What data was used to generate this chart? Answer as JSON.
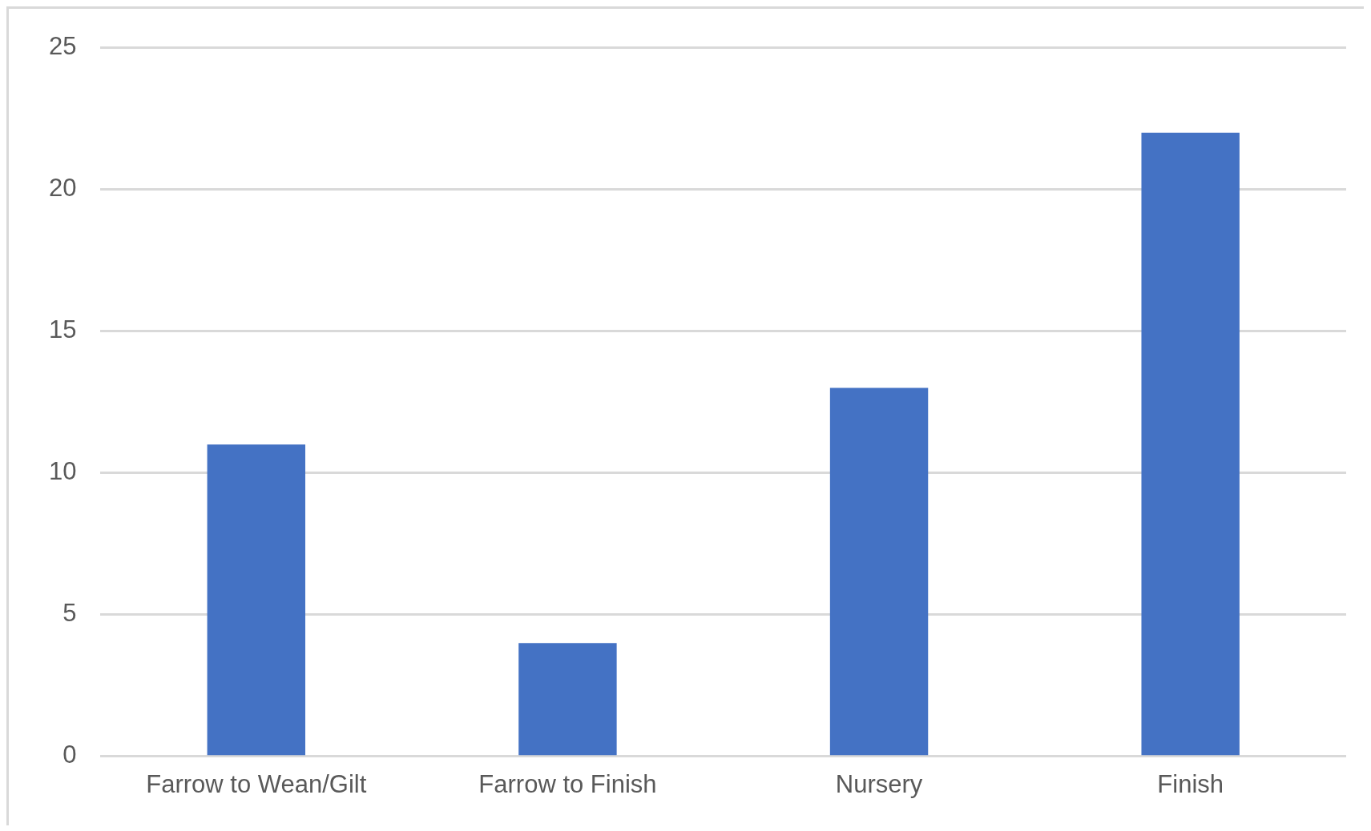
{
  "chart_data": {
    "type": "bar",
    "categories": [
      "Farrow to Wean/Gilt",
      "Farrow to Finish",
      "Nursery",
      "Finish"
    ],
    "values": [
      11,
      4,
      13,
      22
    ],
    "color": "#4472c4",
    "ylim": [
      0,
      25
    ],
    "yticks": [
      0,
      5,
      10,
      15,
      20,
      25
    ],
    "grid": "y",
    "legend": false
  }
}
